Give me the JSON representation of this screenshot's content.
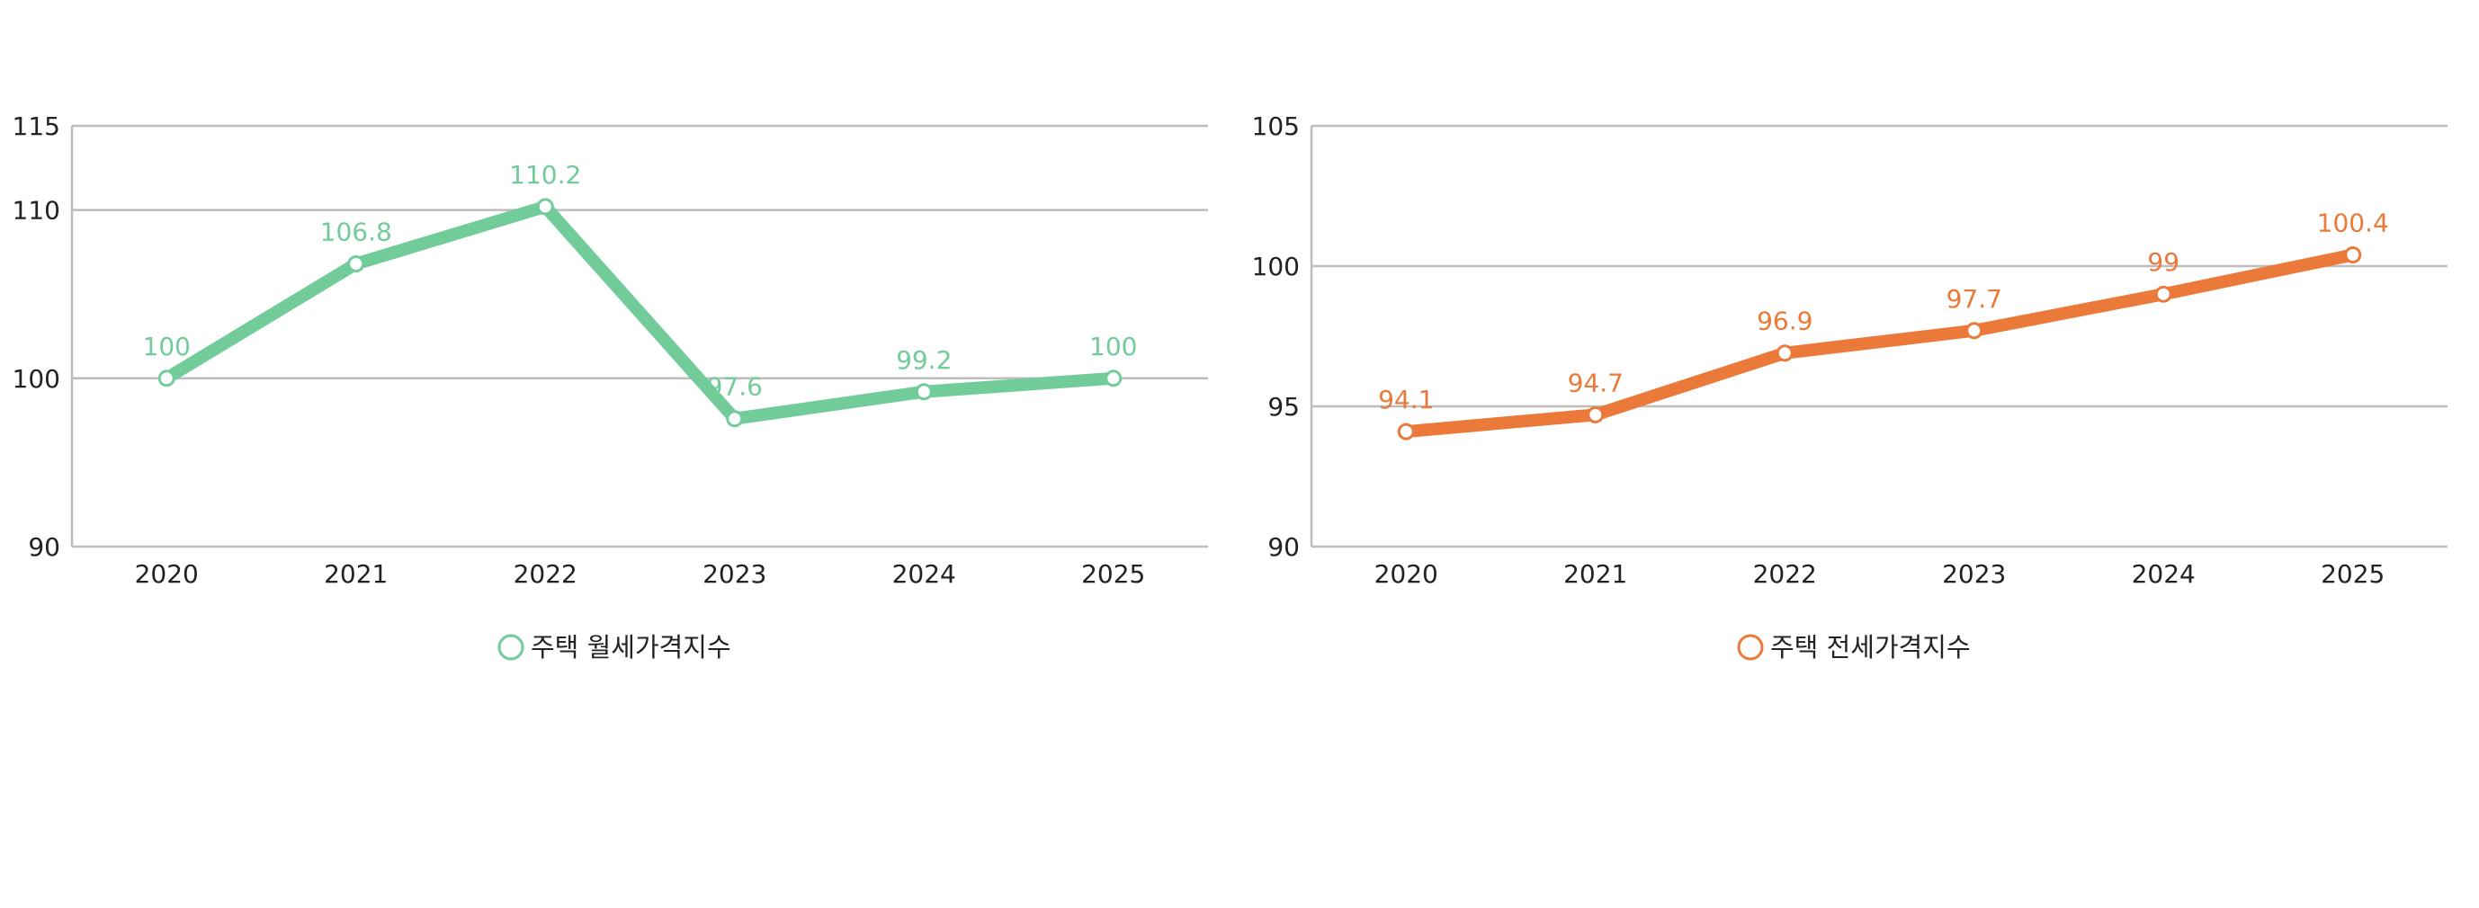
{
  "chart_data": [
    {
      "type": "line",
      "categories": [
        "2020",
        "2021",
        "2022",
        "2023",
        "2024",
        "2025"
      ],
      "series": [
        {
          "name": "주택 월세가격지수",
          "values": [
            100,
            106.8,
            110.2,
            97.6,
            99.2,
            100
          ]
        }
      ],
      "ylim": [
        90,
        115
      ],
      "yticks": [
        90,
        100,
        110,
        115
      ],
      "yticks_text": [
        "90",
        "100",
        "110",
        "115"
      ],
      "data_labels": [
        "100",
        "106.8",
        "110.2",
        "97.6",
        "99.2",
        "100"
      ],
      "grid": true,
      "legend": "bottom-center",
      "color": "#72CC9A"
    },
    {
      "type": "line",
      "categories": [
        "2020",
        "2021",
        "2022",
        "2023",
        "2024",
        "2025"
      ],
      "series": [
        {
          "name": "주택 전세가격지수",
          "values": [
            94.1,
            94.7,
            96.9,
            97.7,
            99,
            100.4
          ]
        }
      ],
      "ylim": [
        90,
        105
      ],
      "yticks": [
        90,
        95,
        100,
        105
      ],
      "yticks_text": [
        "90",
        "95",
        "100",
        "105"
      ],
      "data_labels": [
        "94.1",
        "94.7",
        "96.9",
        "97.7",
        "99",
        "100.4"
      ],
      "grid": true,
      "legend": "bottom-center",
      "color": "#EB7A3A"
    }
  ]
}
